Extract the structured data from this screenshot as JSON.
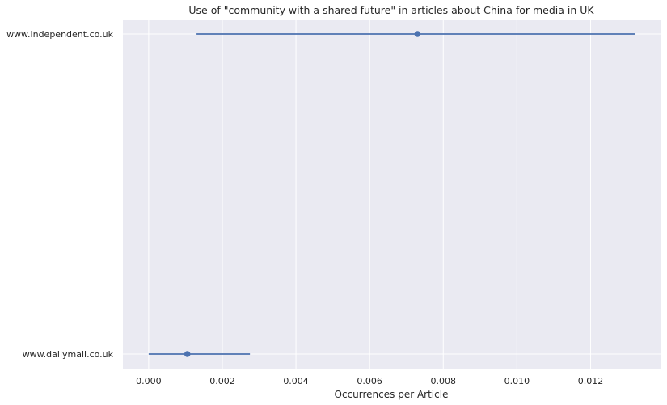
{
  "chart_data": {
    "type": "scatter",
    "title": "Use of \"community with a shared future\" in articles about China for media in UK",
    "xlabel": "Occurrences per Article",
    "ylabel": "",
    "xlim": [
      -0.0007,
      0.0139
    ],
    "x_ticks": [
      "0.000",
      "0.002",
      "0.004",
      "0.006",
      "0.008",
      "0.010",
      "0.012"
    ],
    "x_tick_values": [
      0.0,
      0.002,
      0.004,
      0.006,
      0.008,
      0.01,
      0.012
    ],
    "categories": [
      "www.independent.co.uk",
      "www.dailymail.co.uk"
    ],
    "points": [
      {
        "category": "www.independent.co.uk",
        "value": 0.0073,
        "ci_low": 0.0013,
        "ci_high": 0.0132
      },
      {
        "category": "www.dailymail.co.uk",
        "value": 0.00105,
        "ci_low": 0.0,
        "ci_high": 0.00275
      }
    ],
    "grid": true,
    "colors": {
      "background": "#EAEAF2",
      "grid": "#FFFFFF",
      "series": "#4C72B0"
    }
  }
}
